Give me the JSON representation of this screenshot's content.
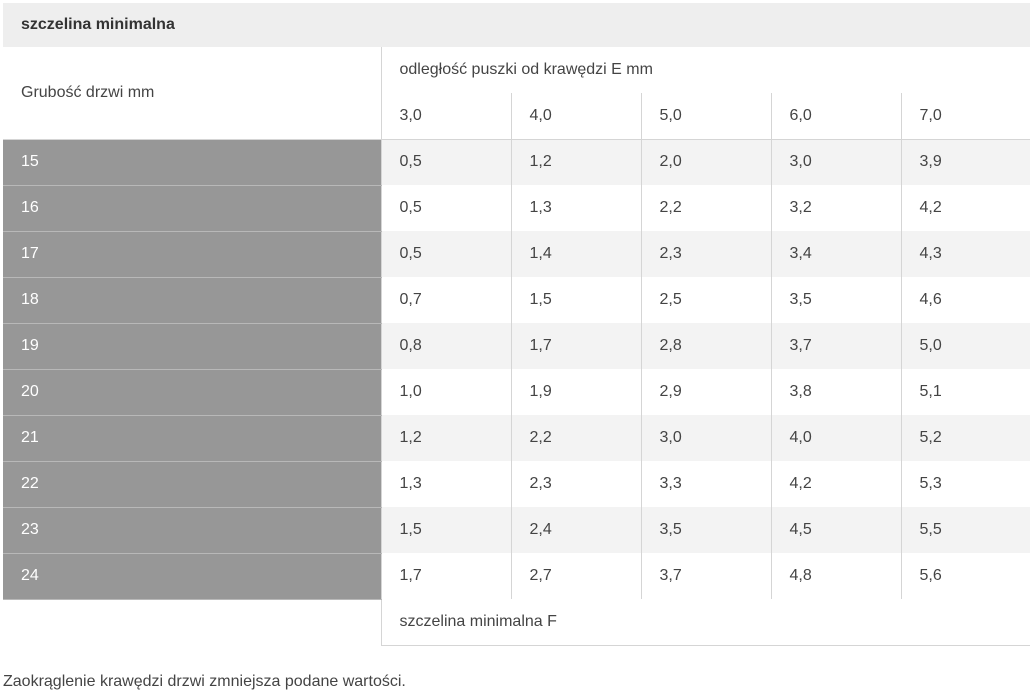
{
  "title": "szczelina minimalna",
  "header": {
    "thickness_label": "Grubość drzwi mm",
    "distance_label": "odległość puszki od krawędzi E mm",
    "distances": [
      "3,0",
      "4,0",
      "5,0",
      "6,0",
      "7,0"
    ]
  },
  "rows": [
    {
      "thickness": "15",
      "values": [
        "0,5",
        "1,2",
        "2,0",
        "3,0",
        "3,9"
      ]
    },
    {
      "thickness": "16",
      "values": [
        "0,5",
        "1,3",
        "2,2",
        "3,2",
        "4,2"
      ]
    },
    {
      "thickness": "17",
      "values": [
        "0,5",
        "1,4",
        "2,3",
        "3,4",
        "4,3"
      ]
    },
    {
      "thickness": "18",
      "values": [
        "0,7",
        "1,5",
        "2,5",
        "3,5",
        "4,6"
      ]
    },
    {
      "thickness": "19",
      "values": [
        "0,8",
        "1,7",
        "2,8",
        "3,7",
        "5,0"
      ]
    },
    {
      "thickness": "20",
      "values": [
        "1,0",
        "1,9",
        "2,9",
        "3,8",
        "5,1"
      ]
    },
    {
      "thickness": "21",
      "values": [
        "1,2",
        "2,2",
        "3,0",
        "4,0",
        "5,2"
      ]
    },
    {
      "thickness": "22",
      "values": [
        "1,3",
        "2,3",
        "3,3",
        "4,2",
        "5,3"
      ]
    },
    {
      "thickness": "23",
      "values": [
        "1,5",
        "2,4",
        "3,5",
        "4,5",
        "5,5"
      ]
    },
    {
      "thickness": "24",
      "values": [
        "1,7",
        "2,7",
        "3,7",
        "4,8",
        "5,6"
      ]
    }
  ],
  "footer_label": "szczelina minimalna F",
  "note": "Zaokrąglenie krawędzi drzwi zmniejsza podane wartości.",
  "colors": {
    "title_bg": "#eeeeee",
    "row_head_bg": "#979797",
    "alt_row_bg": "#f3f3f3"
  }
}
